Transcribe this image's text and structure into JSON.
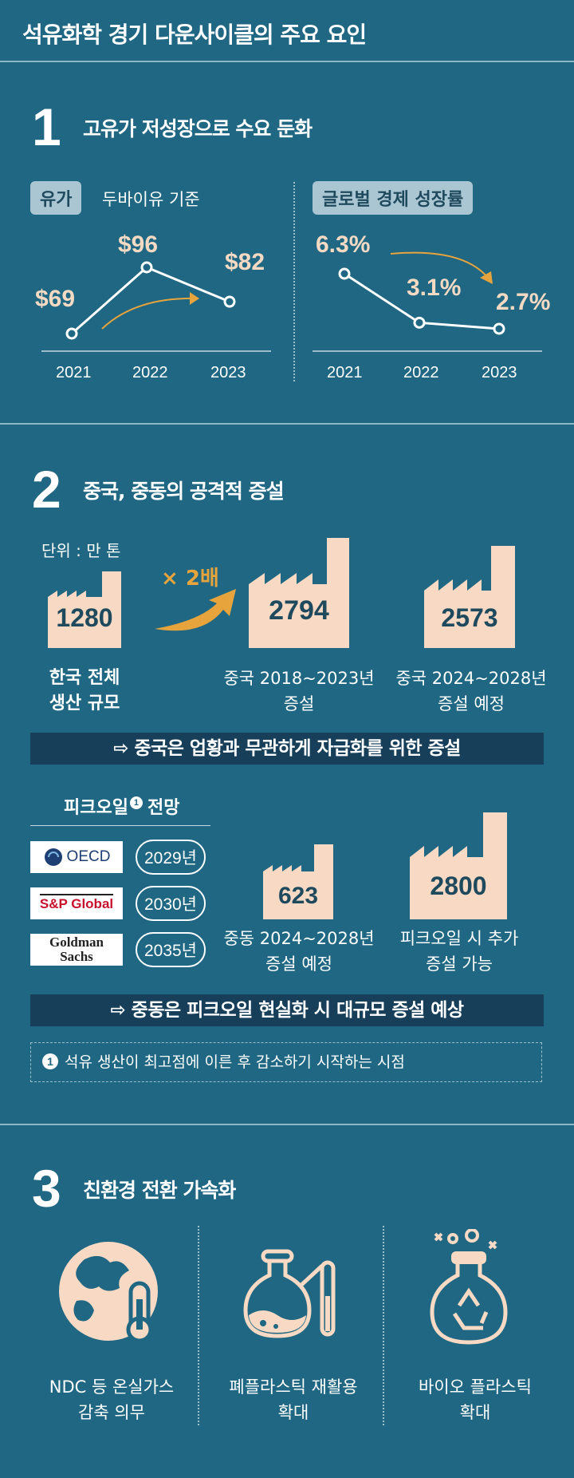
{
  "title": "석유화학 경기 다운사이클의 주요 요인",
  "section1": {
    "number": "1",
    "title": "고유가 저성장으로 수요 둔화",
    "oil": {
      "pill": "유가",
      "note": "두바이유 기준",
      "points": [
        {
          "year": "2021",
          "label": "$69",
          "value": 69
        },
        {
          "year": "2022",
          "label": "$96",
          "value": 96
        },
        {
          "year": "2023",
          "label": "$82",
          "value": 82
        }
      ]
    },
    "growth": {
      "pill": "글로벌 경제 성장률",
      "points": [
        {
          "year": "2021",
          "label": "6.3%",
          "value": 6.3
        },
        {
          "year": "2022",
          "label": "3.1%",
          "value": 3.1
        },
        {
          "year": "2023",
          "label": "2.7%",
          "value": 2.7
        }
      ]
    }
  },
  "section2": {
    "number": "2",
    "title": "중국, 중동의 공격적 증설",
    "unit": "단위 : 만 톤",
    "multiplier": "× 2배",
    "factories": [
      {
        "value": "1280",
        "line1": "한국 전체",
        "line2": "생산 규모"
      },
      {
        "value": "2794",
        "line1": "중국 2018~2023년",
        "line2": "증설"
      },
      {
        "value": "2573",
        "line1": "중국 2024~2028년",
        "line2": "증설 예정"
      }
    ],
    "banner1": "⇨ 중국은 업황과 무관하게 자급화를 위한 증설",
    "peak": {
      "title": "피크오일",
      "title_mark": "1",
      "title_suffix": "전망",
      "rows": [
        {
          "org": "OECD",
          "year": "2029년"
        },
        {
          "org": "S&P Global",
          "year": "2030년"
        },
        {
          "org_line1": "Goldman",
          "org_line2": "Sachs",
          "year": "2035년"
        }
      ]
    },
    "factories2": [
      {
        "value": "623",
        "line1": "중동 2024~2028년",
        "line2": "증설 예정"
      },
      {
        "value": "2800",
        "line1": "피크오일 시 추가",
        "line2": "증설 가능"
      }
    ],
    "banner2": "⇨ 중동은 피크오일 현실화 시 대규모 증설 예상",
    "footnote_mark": "1",
    "footnote": "석유 생산이 최고점에 이른 후 감소하기 시작하는 시점"
  },
  "section3": {
    "number": "3",
    "title": "친환경 전환 가속화",
    "items": [
      {
        "icon": "globe-thermometer-icon",
        "line1": "NDC 등 온실가스",
        "line2": "감축 의무"
      },
      {
        "icon": "flask-test-tube-icon",
        "line1": "폐플라스틱 재활용",
        "line2": "확대"
      },
      {
        "icon": "recycle-flask-icon",
        "line1": "바이오 플라스틱",
        "line2": "확대"
      }
    ]
  },
  "colors": {
    "background": "#1f6782",
    "accent_orange": "#e7a43c",
    "factory": "#f7d9c4",
    "banner": "#173f5a"
  }
}
